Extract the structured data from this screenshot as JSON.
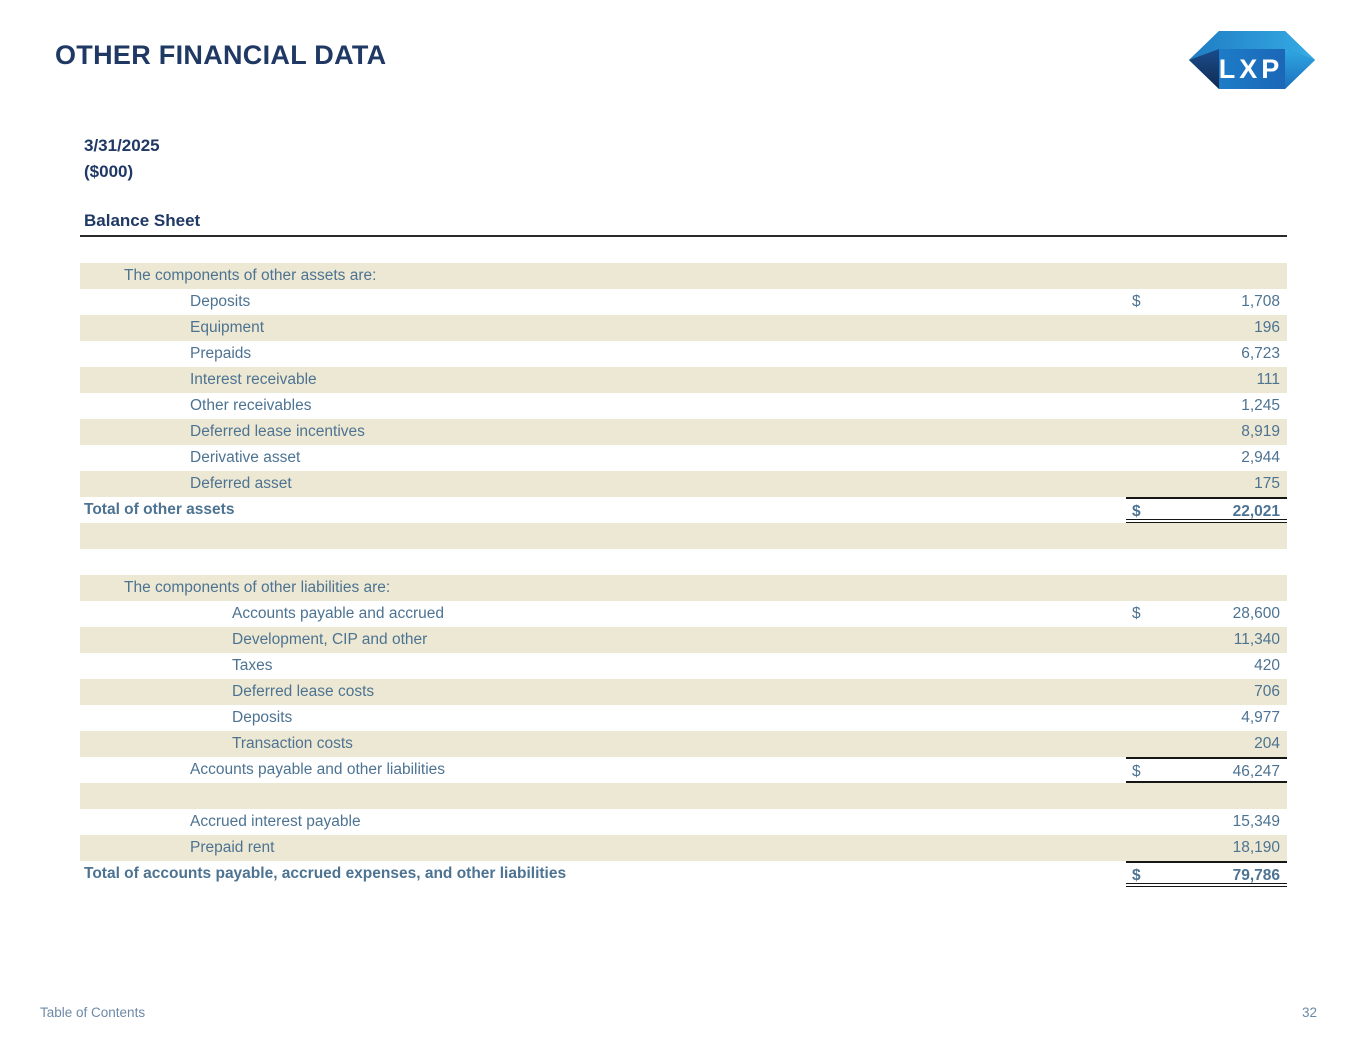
{
  "page": {
    "title": "OTHER FINANCIAL DATA",
    "logo_text": "LXP",
    "date": "3/31/2025",
    "units": "($000)",
    "section_header": "Balance Sheet",
    "footer": {
      "left": "Table of Contents",
      "page_number": "32"
    }
  },
  "colors": {
    "heading_navy": "#1F3864",
    "row_text_slate": "#4D7392",
    "row_stripe_beige": "#EDE8D3",
    "rule_black": "#161616",
    "footer_blue_gray": "#6D89A6",
    "logo_blue_light": "#35ACE4",
    "logo_blue_mid": "#1D87CF",
    "logo_blue_dark": "#102C52"
  },
  "table": {
    "rows": [
      {
        "label": "The components of other assets are:",
        "indent": 1,
        "bg": "beige"
      },
      {
        "label": "Deposits",
        "indent": 2,
        "bg": "white",
        "dollar": "$",
        "value": "1,708"
      },
      {
        "label": "Equipment",
        "indent": 2,
        "bg": "beige",
        "value": "196"
      },
      {
        "label": "Prepaids",
        "indent": 2,
        "bg": "white",
        "value": "6,723"
      },
      {
        "label": "Interest receivable",
        "indent": 2,
        "bg": "beige",
        "value": "111"
      },
      {
        "label": "Other receivables",
        "indent": 2,
        "bg": "white",
        "value": "1,245"
      },
      {
        "label": "Deferred lease incentives",
        "indent": 2,
        "bg": "beige",
        "value": "8,919"
      },
      {
        "label": "Derivative asset",
        "indent": 2,
        "bg": "white",
        "value": "2,944"
      },
      {
        "label": "Deferred asset",
        "indent": 2,
        "bg": "beige",
        "value": "175"
      },
      {
        "label": "Total of other assets",
        "indent": 0,
        "bold": true,
        "bg": "white",
        "dollar": "$",
        "value": "22,021",
        "line": "total-grand"
      },
      {
        "spacer": true,
        "bg": "beige"
      },
      {
        "spacer": true,
        "bg": "white"
      },
      {
        "label": "The components of other liabilities are:",
        "indent": 1,
        "bg": "beige"
      },
      {
        "label": "Accounts payable and accrued",
        "indent": 3,
        "bg": "white",
        "dollar": "$",
        "value": "28,600"
      },
      {
        "label": "Development, CIP and other",
        "indent": 3,
        "bg": "beige",
        "value": "11,340"
      },
      {
        "label": "Taxes",
        "indent": 3,
        "bg": "white",
        "value": "420"
      },
      {
        "label": "Deferred lease costs",
        "indent": 3,
        "bg": "beige",
        "value": "706"
      },
      {
        "label": "Deposits",
        "indent": 3,
        "bg": "white",
        "value": "4,977"
      },
      {
        "label": "Transaction costs",
        "indent": 3,
        "bg": "beige",
        "value": "204"
      },
      {
        "label": "Accounts payable and other liabilities",
        "indent": 2,
        "bg": "white",
        "dollar": "$",
        "value": "46,247",
        "line": "total-sub"
      },
      {
        "spacer": true,
        "bg": "beige"
      },
      {
        "label": "Accrued interest payable",
        "indent": 2,
        "bg": "white",
        "value": "15,349"
      },
      {
        "label": "Prepaid rent",
        "indent": 2,
        "bg": "beige",
        "value": "18,190"
      },
      {
        "label": "Total of accounts payable, accrued expenses, and other liabilities",
        "indent": 0,
        "bold": true,
        "bg": "white",
        "dollar": "$",
        "value": "79,786",
        "line": "total-grand"
      }
    ]
  }
}
